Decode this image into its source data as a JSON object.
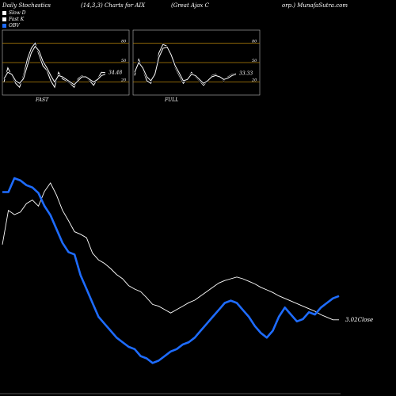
{
  "header": {
    "left": "Daily Stochastics",
    "middle": "(14,3,3) Charts for AIX",
    "right_a": "(Great Ajax C",
    "right_b": "orp.) MunafaSutra.com"
  },
  "legend": [
    {
      "label": "Slow D",
      "color": "#ffffff"
    },
    {
      "label": "Fast K",
      "color": "#ffffff"
    },
    {
      "label": "OBV",
      "color": "#1e6cff"
    }
  ],
  "chart_data": [
    {
      "type": "line",
      "name_label": "FAST",
      "ylim": [
        0,
        100
      ],
      "gridlines": [
        20,
        50,
        80
      ],
      "end_value_label": "34.48",
      "series": [
        {
          "name": "Fast K",
          "values": [
            20,
            42,
            30,
            18,
            12,
            30,
            55,
            72,
            80,
            62,
            45,
            38,
            22,
            12,
            35,
            25,
            22,
            18,
            12,
            25,
            30,
            28,
            22,
            15,
            25,
            35,
            34.48
          ]
        },
        {
          "name": "Slow D",
          "values": [
            25,
            35,
            32,
            22,
            18,
            25,
            45,
            65,
            75,
            68,
            52,
            42,
            30,
            20,
            30,
            28,
            24,
            20,
            16,
            22,
            28,
            28,
            24,
            20,
            24,
            30,
            32
          ]
        }
      ]
    },
    {
      "type": "line",
      "name_label": "FULL",
      "ylim": [
        0,
        100
      ],
      "gridlines": [
        20,
        50,
        80
      ],
      "end_value_label": "33.33",
      "series": [
        {
          "name": "Fast K",
          "values": [
            30,
            55,
            40,
            22,
            18,
            35,
            65,
            78,
            75,
            60,
            42,
            30,
            18,
            25,
            35,
            28,
            22,
            15,
            22,
            30,
            32,
            28,
            22,
            28,
            32,
            33.33
          ]
        },
        {
          "name": "Slow D",
          "values": [
            35,
            50,
            42,
            28,
            22,
            32,
            58,
            72,
            74,
            62,
            45,
            34,
            22,
            24,
            32,
            30,
            24,
            18,
            22,
            28,
            30,
            28,
            24,
            26,
            30,
            32
          ]
        }
      ]
    },
    {
      "type": "line",
      "end_value_label": "3.02",
      "end_value_suffix": "Close",
      "series": [
        {
          "name": "Close",
          "values": [
            3.9,
            4.3,
            4.25,
            4.28,
            4.38,
            4.42,
            4.35,
            4.52,
            4.62,
            4.48,
            4.3,
            4.18,
            4.05,
            4.02,
            3.98,
            3.8,
            3.72,
            3.68,
            3.62,
            3.55,
            3.5,
            3.42,
            3.38,
            3.35,
            3.28,
            3.2,
            3.18,
            3.14,
            3.1,
            3.14,
            3.18,
            3.22,
            3.25,
            3.3,
            3.35,
            3.4,
            3.45,
            3.48,
            3.5,
            3.52,
            3.5,
            3.47,
            3.44,
            3.4,
            3.37,
            3.34,
            3.3,
            3.27,
            3.24,
            3.21,
            3.18,
            3.15,
            3.12,
            3.08,
            3.05,
            3.02,
            3.02
          ]
        },
        {
          "name": "OBV",
          "values": [
            2.3,
            2.3,
            2.6,
            2.55,
            2.45,
            2.4,
            2.28,
            2.0,
            1.8,
            1.5,
            1.2,
            1.0,
            0.95,
            0.5,
            0.2,
            -0.1,
            -0.4,
            -0.55,
            -0.7,
            -0.85,
            -0.95,
            -1.05,
            -1.1,
            -1.25,
            -1.3,
            -1.4,
            -1.35,
            -1.25,
            -1.15,
            -1.1,
            -1.0,
            -0.95,
            -0.85,
            -0.7,
            -0.55,
            -0.4,
            -0.25,
            -0.1,
            -0.05,
            -0.1,
            -0.25,
            -0.4,
            -0.6,
            -0.75,
            -0.85,
            -0.7,
            -0.4,
            -0.2,
            -0.35,
            -0.5,
            -0.45,
            -0.3,
            -0.35,
            -0.2,
            -0.1,
            0.0,
            0.05
          ]
        }
      ]
    }
  ]
}
